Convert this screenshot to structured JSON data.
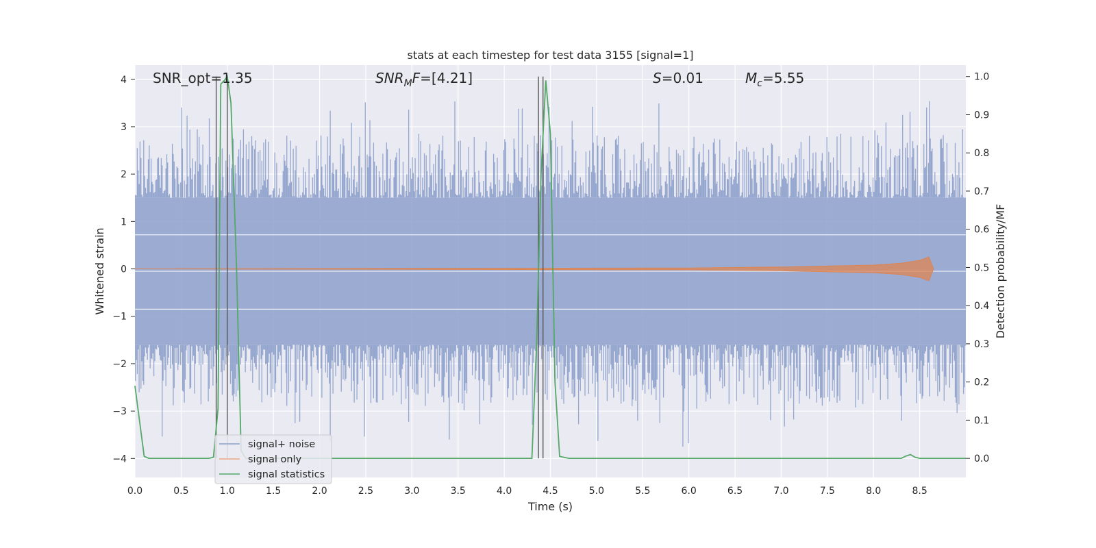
{
  "chart_data": {
    "type": "line",
    "title": "stats at each timestep for test data 3155 [signal=1]",
    "xlabel": "Time (s)",
    "ylabel": "Whitened strain",
    "y2label": "Detection probability/MF",
    "xlim": [
      0.0,
      9.0
    ],
    "ylim": [
      -4.4,
      4.3
    ],
    "y2lim": [
      -0.05,
      1.03
    ],
    "xticks": [
      "0.0",
      "0.5",
      "1.0",
      "1.5",
      "2.0",
      "2.5",
      "3.0",
      "3.5",
      "4.0",
      "4.5",
      "5.0",
      "5.5",
      "6.0",
      "6.5",
      "7.0",
      "7.5",
      "8.0",
      "8.5"
    ],
    "yticks": [
      "4",
      "3",
      "2",
      "1",
      "0",
      "−1",
      "−2",
      "−3",
      "−4"
    ],
    "y2ticks": [
      "1.0",
      "0.9",
      "0.8",
      "0.7",
      "0.6",
      "0.5",
      "0.4",
      "0.3",
      "0.2",
      "0.1",
      "0.0"
    ],
    "grid": true,
    "legend_position": "lower-left",
    "annotations": {
      "snr_opt": "SNR_opt=1.35",
      "snr_mf_base": "SNR",
      "snr_mf_sub": "M",
      "snr_mf_rest": "F=[4.21]",
      "s_sym": "S",
      "s_rest": "=0.01",
      "mc_sym": "M",
      "mc_sub": "c",
      "mc_rest": "=5.55"
    },
    "series": [
      {
        "name": "signal+ noise",
        "axis": "left",
        "color": "#8da0cb",
        "description_points": {
          "x": [
            0.0,
            9.0
          ],
          "envelope_upper": [
            1.5,
            1.5
          ],
          "envelope_lower": [
            -1.6,
            -1.6
          ]
        }
      },
      {
        "name": "signal only",
        "axis": "left",
        "color": "#dd8452",
        "x": [
          0.0,
          6.0,
          7.0,
          7.5,
          8.0,
          8.3,
          8.5,
          8.6,
          8.65
        ],
        "amplitude": [
          0.0,
          0.02,
          0.04,
          0.06,
          0.08,
          0.12,
          0.18,
          0.25,
          0.0
        ]
      },
      {
        "name": "signal statistics",
        "axis": "right",
        "color": "#55a868",
        "x": [
          0.0,
          0.1,
          0.15,
          0.8,
          0.85,
          0.9,
          0.93,
          0.97,
          1.0,
          1.04,
          1.1,
          1.15,
          1.2,
          4.3,
          4.35,
          4.4,
          4.45,
          4.5,
          4.55,
          4.6,
          4.7,
          8.3,
          8.35,
          8.4,
          8.45,
          8.5,
          8.6,
          9.0
        ],
        "y": [
          0.19,
          0.005,
          0.0,
          0.0,
          0.003,
          0.13,
          0.98,
          0.99,
          1.0,
          0.93,
          0.5,
          0.02,
          0.0,
          0.0,
          0.3,
          0.75,
          0.99,
          0.85,
          0.2,
          0.005,
          0.0,
          0.0,
          0.006,
          0.01,
          0.003,
          0.0,
          0.0,
          0.0
        ]
      }
    ],
    "vertical_markers": [
      0.88,
      1.0,
      4.37,
      4.42
    ]
  },
  "legend": {
    "items": [
      {
        "label": "signal+ noise",
        "color": "#8da0cb"
      },
      {
        "label": "signal only",
        "color": "#e9a585"
      },
      {
        "label": "signal statistics",
        "color": "#55a868"
      }
    ]
  }
}
